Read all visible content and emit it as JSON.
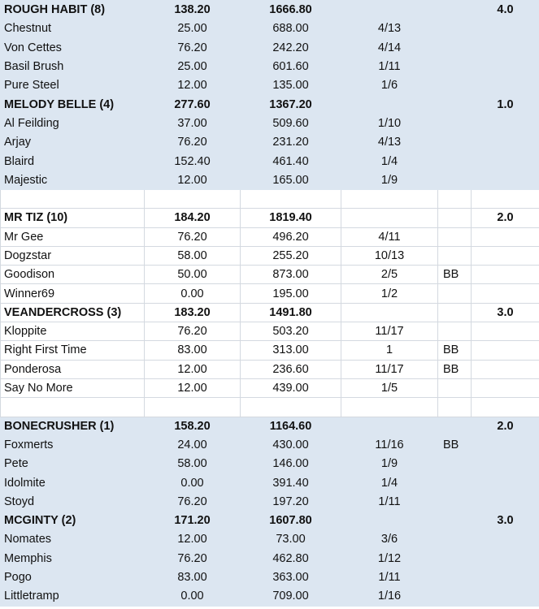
{
  "groups": [
    {
      "shaded": true,
      "teams": [
        {
          "name": "ROUGH HABIT (8)",
          "a": "138.20",
          "b": "1666.80",
          "score": "4.0",
          "runners": [
            {
              "name": "Chestnut",
              "a": "25.00",
              "b": "688.00",
              "place": "4/13",
              "note": ""
            },
            {
              "name": "Von Cettes",
              "a": "76.20",
              "b": "242.20",
              "place": "4/14",
              "note": ""
            },
            {
              "name": "Basil Brush",
              "a": "25.00",
              "b": "601.60",
              "place": "1/11",
              "note": ""
            },
            {
              "name": "Pure Steel",
              "a": "12.00",
              "b": "135.00",
              "place": "1/6",
              "note": ""
            }
          ]
        },
        {
          "name": "MELODY BELLE (4)",
          "a": "277.60",
          "b": "1367.20",
          "score": "1.0",
          "runners": [
            {
              "name": "Al Feilding",
              "a": "37.00",
              "b": "509.60",
              "place": "1/10",
              "note": ""
            },
            {
              "name": "Arjay",
              "a": "76.20",
              "b": "231.20",
              "place": "4/13",
              "note": ""
            },
            {
              "name": "Blaird",
              "a": "152.40",
              "b": "461.40",
              "place": "1/4",
              "note": ""
            },
            {
              "name": "Majestic",
              "a": "12.00",
              "b": "165.00",
              "place": "1/9",
              "note": ""
            }
          ]
        }
      ]
    },
    {
      "shaded": false,
      "teams": [
        {
          "name": "MR TIZ (10)",
          "a": "184.20",
          "b": "1819.40",
          "score": "2.0",
          "runners": [
            {
              "name": "Mr Gee",
              "a": "76.20",
              "b": "496.20",
              "place": "4/11",
              "note": ""
            },
            {
              "name": "Dogzstar",
              "a": "58.00",
              "b": "255.20",
              "place": "10/13",
              "note": ""
            },
            {
              "name": "Goodison",
              "a": "50.00",
              "b": "873.00",
              "place": "2/5",
              "note": "BB"
            },
            {
              "name": "Winner69",
              "a": "0.00",
              "b": "195.00",
              "place": "1/2",
              "note": ""
            }
          ]
        },
        {
          "name": "VEANDERCROSS (3)",
          "a": "183.20",
          "b": "1491.80",
          "score": "3.0",
          "runners": [
            {
              "name": "Kloppite",
              "a": "76.20",
              "b": "503.20",
              "place": "11/17",
              "note": ""
            },
            {
              "name": "Right First Time",
              "a": "83.00",
              "b": "313.00",
              "place": "1",
              "note": "BB"
            },
            {
              "name": "Ponderosa",
              "a": "12.00",
              "b": "236.60",
              "place": "11/17",
              "note": "BB"
            },
            {
              "name": "Say No More",
              "a": "12.00",
              "b": "439.00",
              "place": "1/5",
              "note": ""
            }
          ]
        }
      ]
    },
    {
      "shaded": true,
      "teams": [
        {
          "name": "BONECRUSHER (1)",
          "a": "158.20",
          "b": "1164.60",
          "score": "2.0",
          "runners": [
            {
              "name": "Foxmerts",
              "a": "24.00",
              "b": "430.00",
              "place": "11/16",
              "note": "BB"
            },
            {
              "name": "Pete",
              "a": "58.00",
              "b": "146.00",
              "place": "1/9",
              "note": ""
            },
            {
              "name": "Idolmite",
              "a": "0.00",
              "b": "391.40",
              "place": "1/4",
              "note": ""
            },
            {
              "name": "Stoyd",
              "a": "76.20",
              "b": "197.20",
              "place": "1/11",
              "note": ""
            }
          ]
        },
        {
          "name": "MCGINTY (2)",
          "a": "171.20",
          "b": "1607.80",
          "score": "3.0",
          "runners": [
            {
              "name": "Nomates",
              "a": "12.00",
              "b": "73.00",
              "place": "3/6",
              "note": ""
            },
            {
              "name": "Memphis",
              "a": "76.20",
              "b": "462.80",
              "place": "1/12",
              "note": ""
            },
            {
              "name": "Pogo",
              "a": "83.00",
              "b": "363.00",
              "place": "1/11",
              "note": ""
            },
            {
              "name": "Littletramp",
              "a": "0.00",
              "b": "709.00",
              "place": "1/16",
              "note": ""
            }
          ]
        }
      ]
    }
  ]
}
